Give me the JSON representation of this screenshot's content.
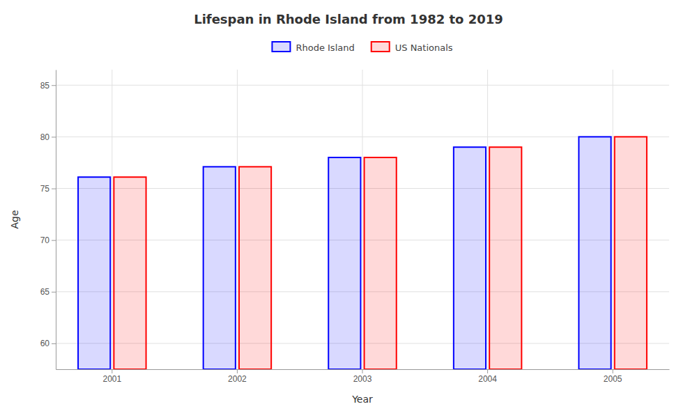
{
  "chart_data": {
    "type": "bar",
    "title": "Lifespan in Rhode Island from 1982 to 2019",
    "xlabel": "Year",
    "ylabel": "Age",
    "categories": [
      "2001",
      "2002",
      "2003",
      "2004",
      "2005"
    ],
    "series": [
      {
        "name": "Rhode Island",
        "color": "#0000ff",
        "values": [
          76.1,
          77.1,
          78.0,
          79.0,
          80.0
        ]
      },
      {
        "name": "US Nationals",
        "color": "#ff0000",
        "values": [
          76.1,
          77.1,
          78.0,
          79.0,
          80.0
        ]
      }
    ],
    "ylim": [
      57.5,
      86.5
    ],
    "yticks": [
      60,
      65,
      70,
      75,
      80,
      85
    ],
    "grid": true,
    "legend": "top"
  }
}
